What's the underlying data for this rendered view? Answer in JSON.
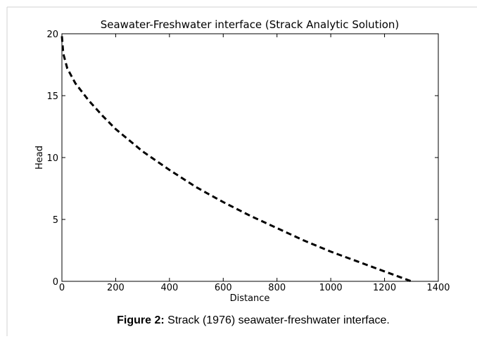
{
  "chart_data": {
    "type": "line",
    "title": "Seawater-Freshwater interface (Strack Analytic Solution)",
    "xlabel": "Distance",
    "ylabel": "Head",
    "x": [
      0,
      5,
      10,
      20,
      50,
      100,
      150,
      200,
      300,
      400,
      500,
      600,
      700,
      800,
      900,
      1000,
      1100,
      1200,
      1300
    ],
    "values": [
      19.8,
      18.4,
      18.0,
      17.2,
      16.0,
      14.6,
      13.4,
      12.3,
      10.5,
      9.0,
      7.6,
      6.4,
      5.3,
      4.3,
      3.3,
      2.4,
      1.6,
      0.8,
      0
    ],
    "color": "#000000",
    "line_style": "dashed",
    "xlim": [
      0,
      1400
    ],
    "xticks": [
      0,
      200,
      400,
      600,
      800,
      1000,
      1200,
      1400
    ],
    "ylim": [
      0,
      20
    ],
    "yticks": [
      0,
      5,
      10,
      15,
      20
    ]
  },
  "caption": {
    "label": "Figure 2:",
    "text": " Strack (1976) seawater-freshwater interface."
  }
}
